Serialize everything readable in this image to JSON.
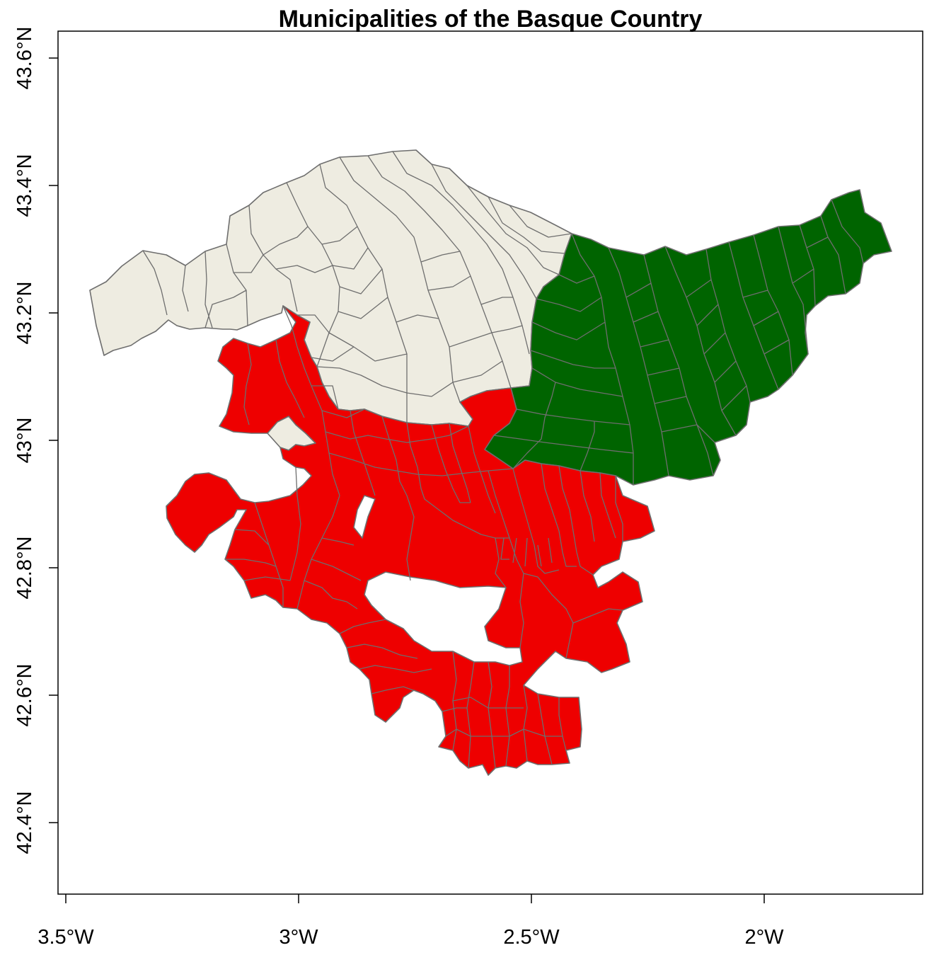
{
  "title": "Municipalities of the Basque Country",
  "x_ticks": [
    {
      "lon": -3.5,
      "label": "3.5°W"
    },
    {
      "lon": -3.0,
      "label": "3°W"
    },
    {
      "lon": -2.5,
      "label": "2.5°W"
    },
    {
      "lon": -2.0,
      "label": "2°W"
    }
  ],
  "y_ticks": [
    {
      "lat": 42.4,
      "label": "42.4°N"
    },
    {
      "lat": 42.6,
      "label": "42.6°N"
    },
    {
      "lat": 42.8,
      "label": "42.8°N"
    },
    {
      "lat": 43.0,
      "label": "43°N"
    },
    {
      "lat": 43.2,
      "label": "43.2°N"
    },
    {
      "lat": 43.4,
      "label": "43.4°N"
    },
    {
      "lat": 43.6,
      "label": "43.6°N"
    }
  ],
  "colors": {
    "bizkaia": "#eeece1",
    "gipuzkoa": "#006400",
    "araba": "#ee0000",
    "border": "#6e6e6e"
  },
  "regions": [
    "bizkaia",
    "gipuzkoa",
    "araba"
  ]
}
